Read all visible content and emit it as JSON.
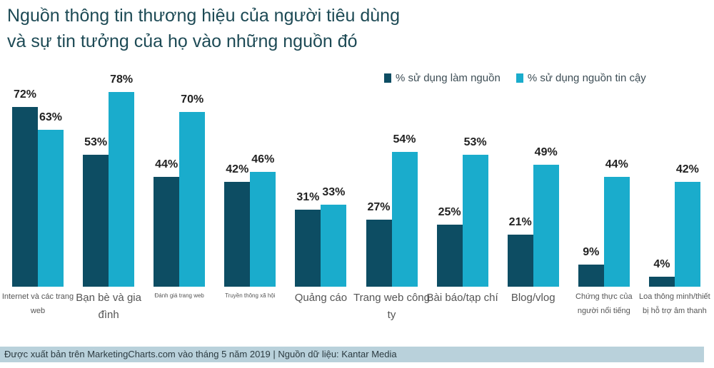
{
  "title": {
    "line1": "Nguồn thông tin thương hiệu của người tiêu dùng",
    "line2": "và sự tin tưởng của họ vào những nguồn đó"
  },
  "legend": [
    {
      "label": "% sử dụng làm nguồn",
      "color": "#0d4d63"
    },
    {
      "label": "% sử dụng nguồn tin cậy",
      "color": "#1aaccc"
    }
  ],
  "footer": {
    "text": "Được xuất bản trên MarketingCharts.com vào tháng 5 năm 2019 | Nguồn dữ liệu: Kantar Media"
  },
  "categories": [
    {
      "label": "Internet và các trang web",
      "size": 11
    },
    {
      "label": "Bạn bè và gia đình",
      "size": 15
    },
    {
      "label": "Đánh giá trang web",
      "size": 8
    },
    {
      "label": "Truyền thông xã hội",
      "size": 8
    },
    {
      "label": "Quảng cáo",
      "size": 15
    },
    {
      "label": "Trang web công ty",
      "size": 15
    },
    {
      "label": "Bài báo/tạp chí",
      "size": 15
    },
    {
      "label": "Blog/vlog",
      "size": 15
    },
    {
      "label": "Chứng thực của người nổi tiếng",
      "size": 11
    },
    {
      "label": "Loa thông minh/thiết bị hỗ trợ âm thanh",
      "size": 11
    }
  ],
  "chart_data": {
    "type": "bar",
    "title": "Nguồn thông tin thương hiệu của người tiêu dùng và sự tin tưởng của họ vào những nguồn đó",
    "categories": [
      "Internet và các trang web",
      "Bạn bè và gia đình",
      "Đánh giá trang web",
      "Truyền thông xã hội",
      "Quảng cáo",
      "Trang web công ty",
      "Bài báo/tạp chí",
      "Blog/vlog",
      "Chứng thực của người nổi tiếng",
      "Loa thông minh/thiết bị hỗ trợ âm thanh"
    ],
    "series": [
      {
        "name": "% sử dụng làm nguồn",
        "color": "#0d4d63",
        "values": [
          72,
          53,
          44,
          42,
          31,
          27,
          25,
          21,
          9,
          4
        ]
      },
      {
        "name": "% sử dụng nguồn tin cậy",
        "color": "#1aaccc",
        "values": [
          63,
          78,
          70,
          46,
          33,
          54,
          53,
          49,
          44,
          42
        ]
      }
    ],
    "value_suffix": "%",
    "xlabel": "",
    "ylabel": "",
    "ylim": [
      0,
      80
    ],
    "grid": false,
    "legend_position": "top-right",
    "source": "Được xuất bản trên MarketingCharts.com vào tháng 5 năm 2019 | Nguồn dữ liệu: Kantar Media"
  }
}
